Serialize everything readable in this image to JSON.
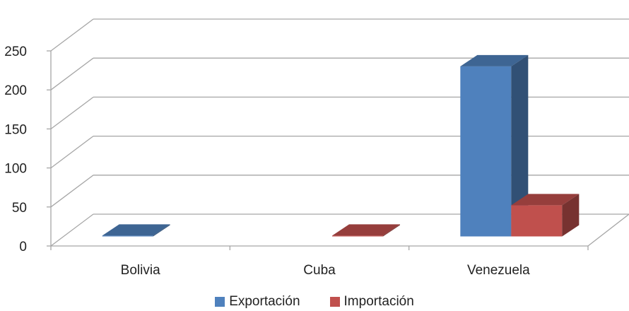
{
  "chart_data": {
    "type": "bar",
    "categories": [
      "Bolivia",
      "Cuba",
      "Venezuela"
    ],
    "series": [
      {
        "name": "Exportación",
        "values": [
          1,
          0,
          218
        ],
        "color": "#4F81BD"
      },
      {
        "name": "Importación",
        "values": [
          0,
          1,
          40
        ],
        "color": "#C0504D"
      }
    ],
    "ylim": [
      0,
      250
    ],
    "yticks": [
      "0",
      "50",
      "100",
      "150",
      "200",
      "250"
    ],
    "grid": true,
    "legend": "bottom",
    "style": "3d-column"
  }
}
